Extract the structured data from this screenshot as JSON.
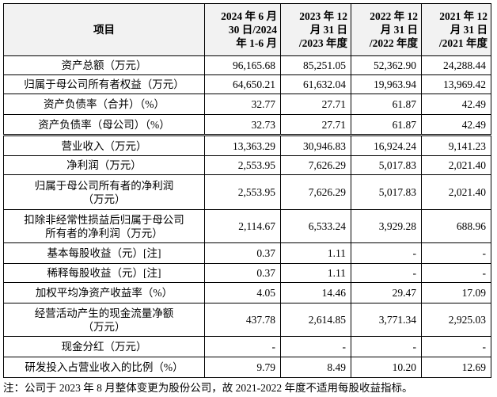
{
  "table": {
    "header": [
      [
        "项目"
      ],
      [
        "2024 年 6 月",
        "30 日/2024",
        "年 1-6 月"
      ],
      [
        "2023 年 12",
        "月 31 日",
        "/2023 年度"
      ],
      [
        "2022 年 12",
        "月 31 日",
        "/2022 年度"
      ],
      [
        "2021 年 12",
        "月 31 日",
        "/2021 年度"
      ]
    ],
    "rows": [
      [
        [
          "资产总额（万元）"
        ],
        "96,165.68",
        "85,251.05",
        "52,362.90",
        "24,288.44"
      ],
      [
        [
          "归属于母公司所有者权益（万元）"
        ],
        "64,650.21",
        "61,632.04",
        "19,963.94",
        "13,969.42"
      ],
      [
        [
          "资产负债率（合并）（%）"
        ],
        "32.77",
        "27.71",
        "61.87",
        "42.49"
      ],
      [
        [
          "资产负债率（母公司）（%）"
        ],
        "32.73",
        "27.71",
        "61.87",
        "42.49"
      ],
      [
        [
          "营业收入（万元）"
        ],
        "13,363.29",
        "30,946.83",
        "16,924.24",
        "9,141.23"
      ],
      [
        [
          "净利润（万元）"
        ],
        "2,553.95",
        "7,626.29",
        "5,017.83",
        "2,021.40"
      ],
      [
        [
          "归属于母公司所有者的净利润",
          "（万元）"
        ],
        "2,553.95",
        "7,626.29",
        "5,017.83",
        "2,021.40"
      ],
      [
        [
          "扣除非经常性损益后归属于母公司",
          "所有者的净利润（万元）"
        ],
        "2,114.67",
        "6,533.24",
        "3,929.28",
        "688.96"
      ],
      [
        [
          "基本每股收益（元）[注]"
        ],
        "0.37",
        "1.11",
        "-",
        "-"
      ],
      [
        [
          "稀释每股收益（元）[注]"
        ],
        "0.37",
        "1.11",
        "-",
        "-"
      ],
      [
        [
          "加权平均净资产收益率（%）"
        ],
        "4.05",
        "14.46",
        "29.47",
        "17.09"
      ],
      [
        [
          "经营活动产生的现金流量净额",
          "（万元）"
        ],
        "437.78",
        "2,614.85",
        "3,771.34",
        "2,925.03"
      ],
      [
        [
          "现金分红（万元）"
        ],
        "-",
        "-",
        "-",
        "-"
      ],
      [
        [
          "研发投入占营业收入的比例（%）"
        ],
        "9.79",
        "8.49",
        "10.20",
        "12.69"
      ]
    ]
  },
  "footnote": "注：公司于 2023 年 8 月整体变更为股份公司，故 2021-2022 年度不适用每股收益指标。"
}
